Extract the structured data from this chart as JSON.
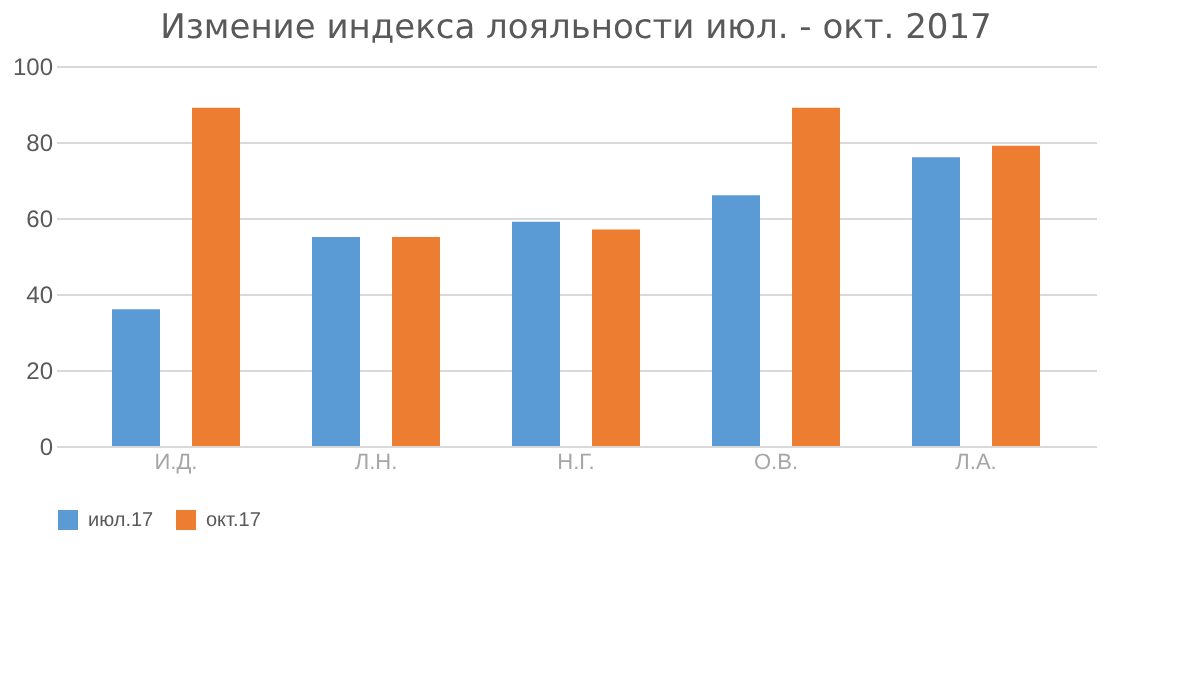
{
  "chart_data": {
    "type": "bar",
    "title": "Измение индекса лояльности июл. - окт. 2017",
    "categories": [
      "И.Д.",
      "Л.Н.",
      "Н.Г.",
      "О.В.",
      "Л.А."
    ],
    "series": [
      {
        "name": "июл.17",
        "color": "#5b9bd5",
        "values": [
          36,
          55,
          59,
          66,
          76
        ]
      },
      {
        "name": "окт.17",
        "color": "#ed7d31",
        "values": [
          89,
          55,
          57,
          89,
          79
        ]
      }
    ],
    "ylim": [
      0,
      100
    ],
    "yticks": [
      0,
      20,
      40,
      60,
      80,
      100
    ],
    "grid": "y",
    "legend": "bottom"
  }
}
